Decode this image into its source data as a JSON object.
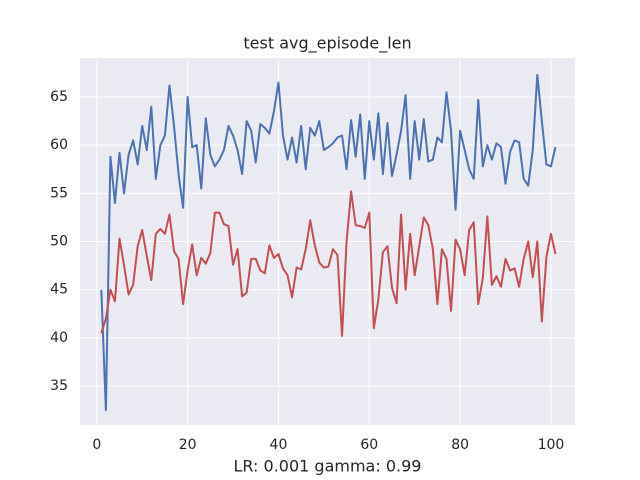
{
  "chart_data": {
    "type": "line",
    "title": "test avg_episode_len",
    "xlabel": "LR: 0.001 gamma: 0.99",
    "x": [
      1,
      2,
      3,
      4,
      5,
      6,
      7,
      8,
      9,
      10,
      11,
      12,
      13,
      14,
      15,
      16,
      17,
      18,
      19,
      20,
      21,
      22,
      23,
      24,
      25,
      26,
      27,
      28,
      29,
      30,
      31,
      32,
      33,
      34,
      35,
      36,
      37,
      38,
      39,
      40,
      41,
      42,
      43,
      44,
      45,
      46,
      47,
      48,
      49,
      50,
      51,
      52,
      53,
      54,
      55,
      56,
      57,
      58,
      59,
      60,
      61,
      62,
      63,
      64,
      65,
      66,
      67,
      68,
      69,
      70,
      71,
      72,
      73,
      74,
      75,
      76,
      77,
      78,
      79,
      80,
      81,
      82,
      83,
      84,
      85,
      86,
      87,
      88,
      89,
      90,
      91,
      92,
      93,
      94,
      95,
      96,
      97,
      98,
      99,
      100,
      101
    ],
    "series": [
      {
        "color": "#4c72b0",
        "values": [
          45,
          32.5,
          58.8,
          54,
          59.2,
          55,
          59,
          60.5,
          58,
          62,
          59.5,
          64,
          56.5,
          60,
          61,
          66.2,
          62,
          57,
          53.5,
          65,
          59.8,
          60,
          55.5,
          62.8,
          59,
          57.8,
          58.5,
          59.5,
          62,
          61,
          59.5,
          57,
          62.5,
          61.5,
          58.2,
          62.2,
          61.8,
          61.2,
          63.5,
          66.5,
          61,
          58.5,
          60.8,
          58.2,
          62,
          57.5,
          61.8,
          61,
          62.5,
          59.5,
          59.8,
          60.2,
          60.8,
          61,
          57.5,
          62.6,
          58.8,
          63.2,
          56.5,
          62.5,
          58.5,
          63.3,
          57,
          62.3,
          56.8,
          59,
          61.5,
          65.2,
          56.5,
          62.5,
          58.5,
          62.7,
          58.3,
          58.5,
          60.8,
          60.3,
          65.5,
          61.5,
          53.3,
          61.5,
          59.5,
          57.5,
          56.5,
          64.7,
          57.8,
          60,
          58.5,
          60.2,
          59.8,
          56,
          59.3,
          60.5,
          60.3,
          56.5,
          55.8,
          59.5,
          67.3,
          62.5,
          58,
          57.8,
          59.8
        ]
      },
      {
        "color": "#c44e52",
        "values": [
          40.5,
          42,
          45,
          43.8,
          50.3,
          47.5,
          44.5,
          45.5,
          49.5,
          51.2,
          48.5,
          46,
          50.8,
          51.3,
          50.8,
          52.8,
          49,
          48.2,
          43.5,
          47,
          49.7,
          46.5,
          48.3,
          47.7,
          48.8,
          53,
          53,
          51.8,
          51.6,
          47.6,
          49.2,
          44.3,
          44.7,
          48.2,
          48.2,
          47,
          46.7,
          49.6,
          48.3,
          48.7,
          47.2,
          46.5,
          44.2,
          47.3,
          47.1,
          49.2,
          52.2,
          49.6,
          47.8,
          47.3,
          47.4,
          49.2,
          48.6,
          40.2,
          50,
          55.2,
          51.7,
          51.6,
          51.4,
          53,
          41,
          44,
          48.9,
          49.5,
          45.2,
          43.6,
          52.8,
          45,
          50.8,
          46.5,
          49.5,
          52.5,
          51.7,
          49.2,
          43.5,
          49.2,
          48.2,
          42.8,
          50.2,
          49.2,
          46.5,
          51.2,
          52,
          43.5,
          46.2,
          52.6,
          45.5,
          46.4,
          45.3,
          48.2,
          47,
          47.2,
          45.3,
          48.2,
          50,
          46.3,
          50,
          41.7,
          48.4,
          50.8,
          48.7
        ]
      }
    ],
    "xlim": [
      -3.7,
      105.3
    ],
    "ylim": [
      30.95,
      69.05
    ],
    "xticks": [
      0,
      20,
      40,
      60,
      80,
      100
    ],
    "yticks": [
      35,
      40,
      45,
      50,
      55,
      60,
      65
    ],
    "grid": true,
    "background": "#eaeaf2"
  }
}
